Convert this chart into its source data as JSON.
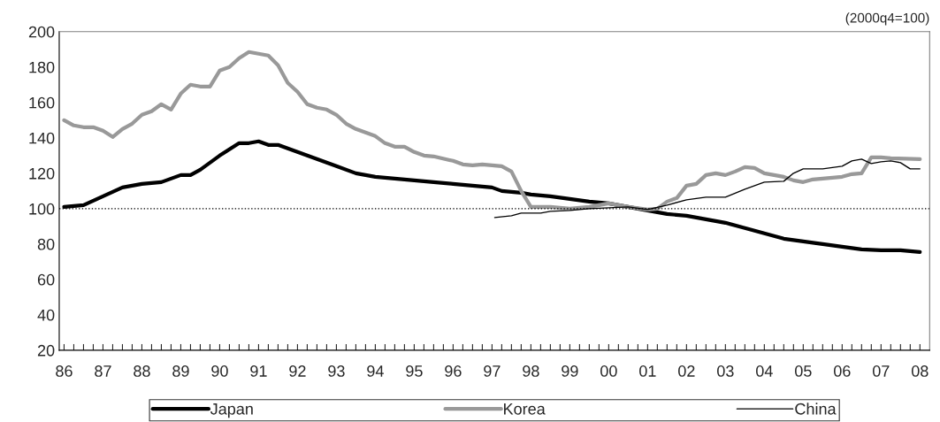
{
  "chart_data": {
    "type": "line",
    "annotations": [
      "(2000q4=100)"
    ],
    "xlim": [
      1985.875,
      2008.25
    ],
    "ylim": [
      20,
      200
    ],
    "yticks": [
      20,
      40,
      60,
      80,
      100,
      120,
      140,
      160,
      180,
      200
    ],
    "xticks": [
      {
        "value": 1986,
        "label": "86"
      },
      {
        "value": 1986.25,
        "label": null
      },
      {
        "value": 1986.5,
        "label": null
      },
      {
        "value": 1986.75,
        "label": null
      },
      {
        "value": 1987,
        "label": "87"
      },
      {
        "value": 1987.25,
        "label": null
      },
      {
        "value": 1987.5,
        "label": null
      },
      {
        "value": 1987.75,
        "label": null
      },
      {
        "value": 1988,
        "label": "88"
      },
      {
        "value": 1988.25,
        "label": null
      },
      {
        "value": 1988.5,
        "label": null
      },
      {
        "value": 1988.75,
        "label": null
      },
      {
        "value": 1989,
        "label": "89"
      },
      {
        "value": 1989.25,
        "label": null
      },
      {
        "value": 1989.5,
        "label": null
      },
      {
        "value": 1989.75,
        "label": null
      },
      {
        "value": 1990,
        "label": "90"
      },
      {
        "value": 1990.25,
        "label": null
      },
      {
        "value": 1990.5,
        "label": null
      },
      {
        "value": 1990.75,
        "label": null
      },
      {
        "value": 1991,
        "label": "91"
      },
      {
        "value": 1991.25,
        "label": null
      },
      {
        "value": 1991.5,
        "label": null
      },
      {
        "value": 1991.75,
        "label": null
      },
      {
        "value": 1992,
        "label": "92"
      },
      {
        "value": 1992.25,
        "label": null
      },
      {
        "value": 1992.5,
        "label": null
      },
      {
        "value": 1992.75,
        "label": null
      },
      {
        "value": 1993,
        "label": "93"
      },
      {
        "value": 1993.25,
        "label": null
      },
      {
        "value": 1993.5,
        "label": null
      },
      {
        "value": 1993.75,
        "label": null
      },
      {
        "value": 1994,
        "label": "94"
      },
      {
        "value": 1994.25,
        "label": null
      },
      {
        "value": 1994.5,
        "label": null
      },
      {
        "value": 1994.75,
        "label": null
      },
      {
        "value": 1995,
        "label": "95"
      },
      {
        "value": 1995.25,
        "label": null
      },
      {
        "value": 1995.5,
        "label": null
      },
      {
        "value": 1995.75,
        "label": null
      },
      {
        "value": 1996,
        "label": "96"
      },
      {
        "value": 1996.25,
        "label": null
      },
      {
        "value": 1996.5,
        "label": null
      },
      {
        "value": 1996.75,
        "label": null
      },
      {
        "value": 1997,
        "label": "97"
      },
      {
        "value": 1997.25,
        "label": null
      },
      {
        "value": 1997.5,
        "label": null
      },
      {
        "value": 1997.75,
        "label": null
      },
      {
        "value": 1998,
        "label": "98"
      },
      {
        "value": 1998.25,
        "label": null
      },
      {
        "value": 1998.5,
        "label": null
      },
      {
        "value": 1998.75,
        "label": null
      },
      {
        "value": 1999,
        "label": "99"
      },
      {
        "value": 1999.25,
        "label": null
      },
      {
        "value": 1999.5,
        "label": null
      },
      {
        "value": 1999.75,
        "label": null
      },
      {
        "value": 2000,
        "label": "00"
      },
      {
        "value": 2000.25,
        "label": null
      },
      {
        "value": 2000.5,
        "label": null
      },
      {
        "value": 2000.75,
        "label": null
      },
      {
        "value": 2001,
        "label": "01"
      },
      {
        "value": 2001.25,
        "label": null
      },
      {
        "value": 2001.5,
        "label": null
      },
      {
        "value": 2001.75,
        "label": null
      },
      {
        "value": 2002,
        "label": "02"
      },
      {
        "value": 2002.25,
        "label": null
      },
      {
        "value": 2002.5,
        "label": null
      },
      {
        "value": 2002.75,
        "label": null
      },
      {
        "value": 2003,
        "label": "03"
      },
      {
        "value": 2003.25,
        "label": null
      },
      {
        "value": 2003.5,
        "label": null
      },
      {
        "value": 2003.75,
        "label": null
      },
      {
        "value": 2004,
        "label": "04"
      },
      {
        "value": 2004.25,
        "label": null
      },
      {
        "value": 2004.5,
        "label": null
      },
      {
        "value": 2004.75,
        "label": null
      },
      {
        "value": 2005,
        "label": "05"
      },
      {
        "value": 2005.25,
        "label": null
      },
      {
        "value": 2005.5,
        "label": null
      },
      {
        "value": 2005.75,
        "label": null
      },
      {
        "value": 2006,
        "label": "06"
      },
      {
        "value": 2006.25,
        "label": null
      },
      {
        "value": 2006.5,
        "label": null
      },
      {
        "value": 2006.75,
        "label": null
      },
      {
        "value": 2007,
        "label": "07"
      },
      {
        "value": 2007.25,
        "label": null
      },
      {
        "value": 2007.5,
        "label": null
      },
      {
        "value": 2007.75,
        "label": null
      },
      {
        "value": 2008,
        "label": "08"
      }
    ],
    "ref_lines": [
      {
        "axis": "y",
        "value": 100,
        "label": null,
        "color": "#000000",
        "line_style": "dotted"
      }
    ],
    "grid": false,
    "legend": "bottom",
    "marker": "none",
    "series": [
      {
        "name": "Japan",
        "color": "#000000",
        "x": [
          1986,
          1986.5,
          1987,
          1987.5,
          1988,
          1988.5,
          1989,
          1989.25,
          1989.5,
          1990,
          1990.5,
          1990.75,
          1991,
          1991.25,
          1991.5,
          1992,
          1992.5,
          1993,
          1993.5,
          1994,
          1994.5,
          1995,
          1995.5,
          1996,
          1996.5,
          1997,
          1997.25,
          1997.75,
          1998,
          1998.5,
          1999,
          1999.5,
          2000,
          2000.5,
          2001,
          2001.5,
          2002,
          2002.5,
          2003,
          2003.5,
          2004,
          2004.5,
          2005,
          2005.5,
          2006,
          2006.5,
          2007,
          2007.5,
          2008
        ],
        "values": [
          101,
          102,
          107,
          112,
          114,
          115,
          119,
          119,
          122,
          130,
          137,
          137,
          138,
          136,
          136,
          132,
          128,
          124,
          120,
          118,
          117,
          116,
          115,
          114,
          113,
          112,
          110,
          109,
          108,
          107,
          105.5,
          104,
          103,
          101,
          99,
          97,
          96,
          94,
          92,
          89,
          86,
          83,
          81.5,
          80,
          78.5,
          77,
          76.5,
          76.5,
          75.5
        ]
      },
      {
        "name": "Korea",
        "color": "#999999",
        "x": [
          1986,
          1986.25,
          1986.5,
          1986.75,
          1987,
          1987.25,
          1987.5,
          1987.75,
          1988,
          1988.25,
          1988.5,
          1988.75,
          1989,
          1989.25,
          1989.5,
          1989.75,
          1990,
          1990.25,
          1990.5,
          1990.75,
          1991,
          1991.25,
          1991.5,
          1991.75,
          1992,
          1992.25,
          1992.5,
          1992.75,
          1993,
          1993.25,
          1993.5,
          1994,
          1994.25,
          1994.5,
          1994.75,
          1995,
          1995.25,
          1995.5,
          1996,
          1996.25,
          1996.5,
          1996.75,
          1997,
          1997.25,
          1997.5,
          1997.75,
          1998,
          1998.5,
          1999,
          1999.5,
          1999.75,
          2000,
          2000.5,
          2001,
          2001.25,
          2001.5,
          2001.75,
          2002,
          2002.25,
          2002.5,
          2002.75,
          2003,
          2003.25,
          2003.5,
          2003.75,
          2004,
          2004.5,
          2004.75,
          2005,
          2005.25,
          2005.5,
          2006,
          2006.25,
          2006.5,
          2006.75,
          2007,
          2007.25,
          2008
        ],
        "values": [
          150,
          147,
          146,
          146,
          144,
          140.5,
          145,
          148,
          153,
          155,
          159,
          156,
          165,
          170,
          169,
          169,
          178,
          180,
          185,
          188.5,
          187.5,
          186.5,
          181,
          171,
          166,
          159,
          157,
          156,
          153,
          148,
          145,
          141,
          137,
          135,
          135,
          132,
          130,
          129.5,
          127,
          125,
          124.5,
          125,
          124.5,
          124,
          121,
          110,
          101,
          101,
          100,
          101,
          102,
          103,
          101,
          99.5,
          100,
          104,
          106,
          113,
          114,
          119,
          120,
          119,
          121,
          123.5,
          123,
          120,
          118,
          116,
          115,
          116.5,
          117,
          118,
          119.5,
          120,
          129,
          129,
          128.5,
          128
        ]
      },
      {
        "name": "China",
        "color": "#000000",
        "x": [
          1997.07,
          1997.5,
          1997.75,
          1998.25,
          1998.5,
          1999,
          1999.5,
          2000,
          2000.5,
          2001,
          2001.5,
          2002,
          2002.5,
          2003,
          2003.5,
          2004,
          2004.5,
          2004.75,
          2005,
          2005.5,
          2006,
          2006.25,
          2006.5,
          2006.75,
          2007,
          2007.25,
          2007.5,
          2007.75,
          2008
        ],
        "values": [
          95,
          96,
          97.5,
          97.5,
          98.5,
          99,
          100,
          100.5,
          101,
          99.5,
          102,
          105,
          106.5,
          106.5,
          111,
          115,
          115.5,
          120,
          122.5,
          122.5,
          124,
          127,
          128,
          125.5,
          126.5,
          127,
          126,
          122.5,
          122.5
        ]
      }
    ]
  }
}
